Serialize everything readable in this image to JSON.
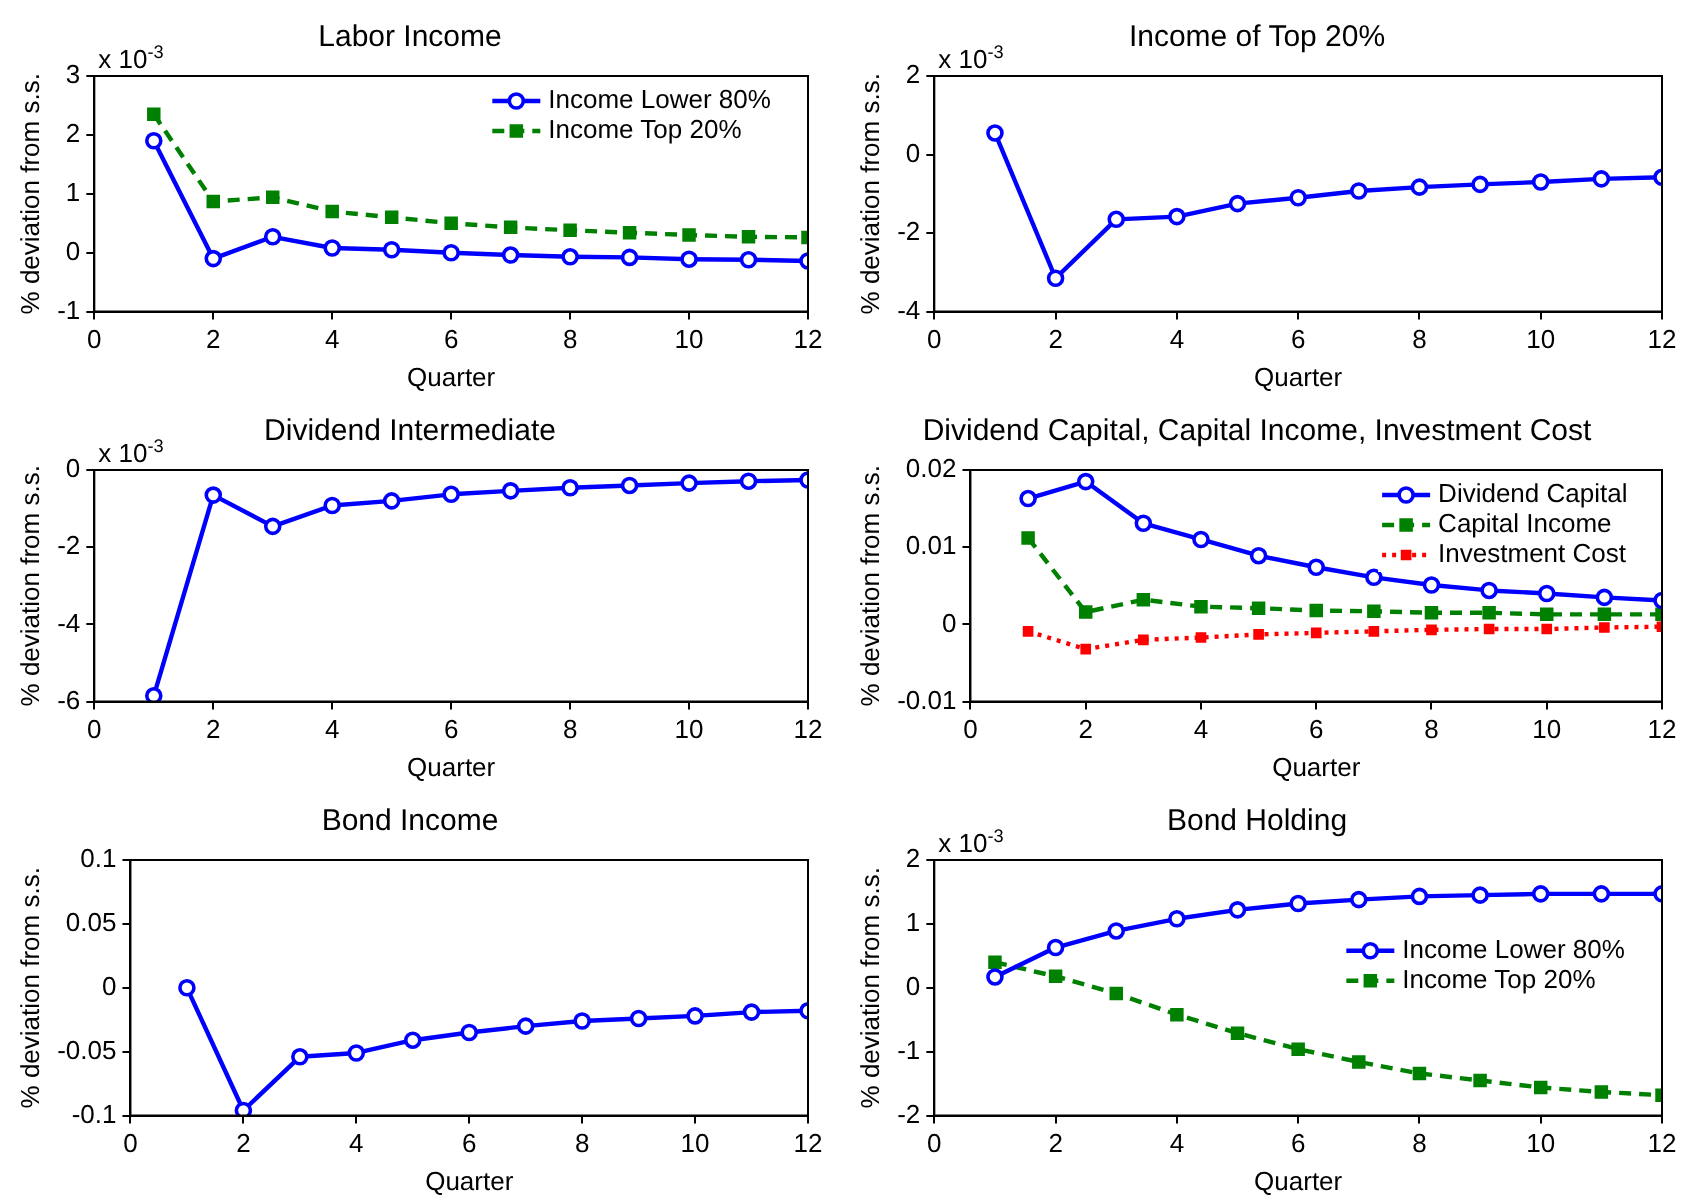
{
  "chart_data": [
    {
      "type": "line",
      "title": "Labor Income",
      "xlabel": "Quarter",
      "ylabel": "% deviation from s.s.",
      "annotations": [
        "x 10$^{-3}$"
      ],
      "x": [
        1,
        2,
        3,
        4,
        5,
        6,
        7,
        8,
        9,
        10,
        11,
        12
      ],
      "xlim": [
        0,
        12
      ],
      "xticks": [
        0,
        2,
        4,
        6,
        8,
        10,
        12
      ],
      "ylim": [
        -1,
        3
      ],
      "yticks": [
        -1,
        0,
        1,
        2,
        3
      ],
      "legend": "top right",
      "series": [
        {
          "name": "Income Lower 80%",
          "color": "#0000ff",
          "marker": "circle",
          "line_style": "solid",
          "values": [
            1.9,
            -0.1,
            0.27,
            0.08,
            0.05,
            0.0,
            -0.04,
            -0.07,
            -0.08,
            -0.11,
            -0.12,
            -0.14
          ]
        },
        {
          "name": "Income Top 20%",
          "color": "#008000",
          "marker": "square",
          "line_style": "dashed",
          "values": [
            2.35,
            0.87,
            0.94,
            0.7,
            0.6,
            0.5,
            0.43,
            0.38,
            0.34,
            0.3,
            0.27,
            0.26
          ]
        }
      ]
    },
    {
      "type": "line",
      "title": "Income of Top 20%",
      "xlabel": "Quarter",
      "ylabel": "% deviation from s.s.",
      "annotations": [
        "x 10$^{-3}$"
      ],
      "x": [
        1,
        2,
        3,
        4,
        5,
        6,
        7,
        8,
        9,
        10,
        11,
        12
      ],
      "xlim": [
        0,
        12
      ],
      "xticks": [
        0,
        2,
        4,
        6,
        8,
        10,
        12
      ],
      "ylim": [
        -4,
        2
      ],
      "yticks": [
        -4,
        -2,
        0,
        2
      ],
      "series": [
        {
          "color": "#0000ff",
          "marker": "circle",
          "line_style": "solid",
          "values": [
            0.55,
            -3.15,
            -1.65,
            -1.58,
            -1.25,
            -1.1,
            -0.93,
            -0.83,
            -0.76,
            -0.7,
            -0.62,
            -0.58
          ]
        }
      ]
    },
    {
      "type": "line",
      "title": "Dividend Intermediate",
      "xlabel": "Quarter",
      "ylabel": "% deviation from s.s.",
      "annotations": [
        "x 10$^{-3}$"
      ],
      "x": [
        1,
        2,
        3,
        4,
        5,
        6,
        7,
        8,
        9,
        10,
        11,
        12
      ],
      "xlim": [
        0,
        12
      ],
      "xticks": [
        0,
        2,
        4,
        6,
        8,
        10,
        12
      ],
      "ylim": [
        -6,
        0
      ],
      "yticks": [
        -6,
        -4,
        -2,
        0
      ],
      "series": [
        {
          "color": "#0000ff",
          "marker": "circle",
          "line_style": "solid",
          "values": [
            -5.85,
            -0.65,
            -1.46,
            -0.92,
            -0.8,
            -0.63,
            -0.54,
            -0.46,
            -0.4,
            -0.34,
            -0.29,
            -0.26
          ]
        }
      ]
    },
    {
      "type": "line",
      "title": "Dividend Capital, Capital Income, Investment Cost",
      "xlabel": "Quarter",
      "ylabel": "% deviation from s.s.",
      "x": [
        1,
        2,
        3,
        4,
        5,
        6,
        7,
        8,
        9,
        10,
        11,
        12
      ],
      "xlim": [
        0,
        12
      ],
      "xticks": [
        0,
        2,
        4,
        6,
        8,
        10,
        12
      ],
      "ylim": [
        -0.01,
        0.02
      ],
      "yticks": [
        -0.01,
        0,
        0.01,
        0.02
      ],
      "legend": "top right",
      "series": [
        {
          "name": "Dividend Capital",
          "color": "#0000ff",
          "marker": "circle",
          "line_style": "solid",
          "values": [
            0.0163,
            0.0185,
            0.0131,
            0.011,
            0.0089,
            0.0074,
            0.0061,
            0.0051,
            0.0044,
            0.004,
            0.0035,
            0.0031
          ]
        },
        {
          "name": "Capital Income",
          "color": "#008000",
          "marker": "square",
          "line_style": "dashed",
          "values": [
            0.0112,
            0.0016,
            0.0032,
            0.0023,
            0.0021,
            0.0018,
            0.0017,
            0.0015,
            0.0015,
            0.0013,
            0.0013,
            0.0013
          ]
        },
        {
          "name": "Investment Cost",
          "color": "#ff0000",
          "marker": "square",
          "line_style": "dotted",
          "values": [
            -0.0009,
            -0.0032,
            -0.002,
            -0.0017,
            -0.0013,
            -0.0011,
            -0.0009,
            -0.0007,
            -0.0006,
            -0.0006,
            -0.0004,
            -0.0003
          ]
        }
      ]
    },
    {
      "type": "line",
      "title": "Bond Income",
      "xlabel": "Quarter",
      "ylabel": "% deviation from s.s.",
      "x": [
        1,
        2,
        3,
        4,
        5,
        6,
        7,
        8,
        9,
        10,
        11,
        12
      ],
      "xlim": [
        0,
        12
      ],
      "xticks": [
        0,
        2,
        4,
        6,
        8,
        10,
        12
      ],
      "ylim": [
        -0.1,
        0.1
      ],
      "yticks": [
        -0.1,
        -0.05,
        0,
        0.05,
        0.1
      ],
      "series": [
        {
          "color": "#0000ff",
          "marker": "circle",
          "line_style": "solid",
          "values": [
            0.0,
            -0.096,
            -0.054,
            -0.051,
            -0.041,
            -0.035,
            -0.03,
            -0.026,
            -0.024,
            -0.022,
            -0.019,
            -0.018
          ]
        }
      ]
    },
    {
      "type": "line",
      "title": "Bond Holding",
      "xlabel": "Quarter",
      "ylabel": "% deviation from s.s.",
      "annotations": [
        "x 10$^{-3}$"
      ],
      "x": [
        1,
        2,
        3,
        4,
        5,
        6,
        7,
        8,
        9,
        10,
        11,
        12
      ],
      "xlim": [
        0,
        12
      ],
      "xticks": [
        0,
        2,
        4,
        6,
        8,
        10,
        12
      ],
      "ylim": [
        -2,
        2
      ],
      "yticks": [
        -2,
        -1,
        0,
        1,
        2
      ],
      "legend": "right",
      "series": [
        {
          "name": "Income Lower 80%",
          "color": "#0000ff",
          "marker": "circle",
          "line_style": "solid",
          "values": [
            0.17,
            0.63,
            0.89,
            1.08,
            1.22,
            1.32,
            1.38,
            1.43,
            1.45,
            1.47,
            1.47,
            1.47
          ]
        },
        {
          "name": "Income Top 20%",
          "color": "#008000",
          "marker": "square",
          "line_style": "dashed",
          "values": [
            0.4,
            0.18,
            -0.09,
            -0.42,
            -0.71,
            -0.96,
            -1.16,
            -1.34,
            -1.45,
            -1.56,
            -1.63,
            -1.68
          ]
        }
      ]
    }
  ]
}
